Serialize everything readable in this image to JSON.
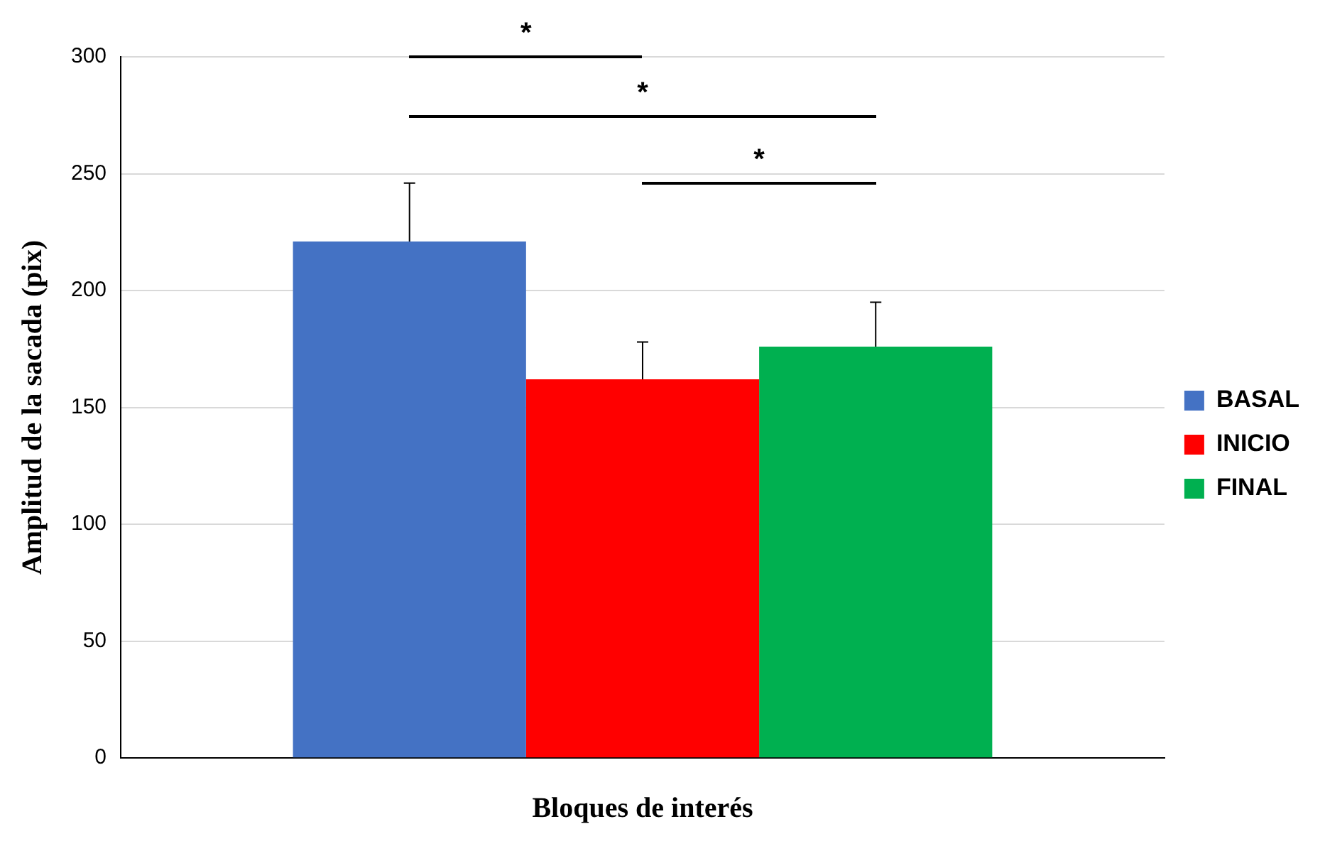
{
  "chart_data": {
    "type": "bar",
    "xlabel": "Bloques de interés",
    "ylabel": "Amplitud de la sacada (pix)",
    "categories": [
      null
    ],
    "series": [
      {
        "name": "BASAL",
        "color": "#4472c4",
        "values": [
          221
        ],
        "errors": [
          [
            221,
            246
          ]
        ]
      },
      {
        "name": "INICIO",
        "color": "#ff0000",
        "values": [
          162
        ],
        "errors": [
          [
            162,
            178
          ]
        ]
      },
      {
        "name": "FINAL",
        "color": "#00b050",
        "values": [
          176
        ],
        "errors": [
          [
            176,
            195
          ]
        ]
      }
    ],
    "ylim": [
      0,
      300
    ],
    "yticks": [
      0,
      50,
      100,
      150,
      200,
      250,
      300
    ],
    "grid": "y",
    "legend": "right",
    "annotations": [
      "*",
      "*",
      "*"
    ]
  }
}
